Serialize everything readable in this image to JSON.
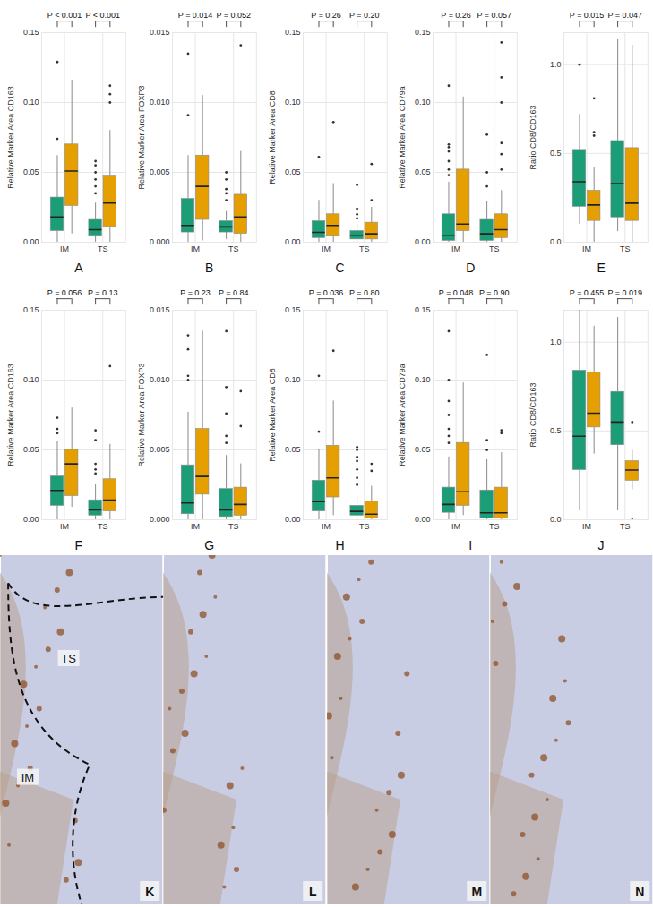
{
  "chart_data": [
    {
      "type": "box",
      "title": "A",
      "y_label": "Relative Marker Area CD163",
      "categories": [
        "IM",
        "TS"
      ],
      "grid": true,
      "ylim": [
        0,
        0.15
      ],
      "yticks": [
        {
          "value": 0,
          "label": "0.00"
        },
        {
          "value": 0.05,
          "label": "0.05"
        },
        {
          "value": 0.1,
          "label": "0.10"
        },
        {
          "value": 0.15,
          "label": "0.15"
        }
      ],
      "annotations": [
        "P < 0.001",
        "P < 0.001"
      ],
      "series": [
        {
          "color": "#1b9e77",
          "boxes": [
            {
              "q1": 0.008,
              "median": 0.018,
              "q3": 0.032,
              "whisker_low": 0,
              "whisker_high": 0.062,
              "outliers": [
                0.074,
                0.129
              ]
            },
            {
              "q1": 0.004,
              "median": 0.009,
              "q3": 0.016,
              "whisker_low": 0,
              "whisker_high": 0.028,
              "outliers": [
                0.035,
                0.04,
                0.045,
                0.05,
                0.055,
                0.058
              ]
            }
          ]
        },
        {
          "color": "#e69f00",
          "boxes": [
            {
              "q1": 0.026,
              "median": 0.051,
              "q3": 0.07,
              "whisker_low": 0.006,
              "whisker_high": 0.116,
              "outliers": []
            },
            {
              "q1": 0.011,
              "median": 0.028,
              "q3": 0.047,
              "whisker_low": 0,
              "whisker_high": 0.08,
              "outliers": [
                0.1,
                0.106,
                0.112
              ]
            }
          ]
        }
      ]
    },
    {
      "type": "box",
      "title": "B",
      "y_label": "Relative Marker Area FOXP3",
      "categories": [
        "IM",
        "TS"
      ],
      "grid": true,
      "ylim": [
        0,
        0.015
      ],
      "yticks": [
        {
          "value": 0,
          "label": "0.000"
        },
        {
          "value": 0.005,
          "label": "0.005"
        },
        {
          "value": 0.01,
          "label": "0.010"
        },
        {
          "value": 0.015,
          "label": "0.015"
        }
      ],
      "annotations": [
        "P = 0.014",
        "P = 0.052"
      ],
      "series": [
        {
          "color": "#1b9e77",
          "boxes": [
            {
              "q1": 0.0007,
              "median": 0.0012,
              "q3": 0.0031,
              "whisker_low": 0,
              "whisker_high": 0.0062,
              "outliers": [
                0.0091,
                0.0135
              ]
            },
            {
              "q1": 0.0007,
              "median": 0.0011,
              "q3": 0.0015,
              "whisker_low": 0.0002,
              "whisker_high": 0.0022,
              "outliers": [
                0.003,
                0.0035,
                0.0038,
                0.0045,
                0.005
              ]
            }
          ]
        },
        {
          "color": "#e69f00",
          "boxes": [
            {
              "q1": 0.0016,
              "median": 0.004,
              "q3": 0.0062,
              "whisker_low": 0.0001,
              "whisker_high": 0.0105,
              "outliers": []
            },
            {
              "q1": 0.0006,
              "median": 0.0018,
              "q3": 0.0034,
              "whisker_low": 0,
              "whisker_high": 0.0065,
              "outliers": [
                0.0141
              ]
            }
          ]
        }
      ]
    },
    {
      "type": "box",
      "title": "C",
      "y_label": "Relative Marker Area CD8",
      "categories": [
        "IM",
        "TS"
      ],
      "grid": true,
      "ylim": [
        0,
        0.15
      ],
      "yticks": [
        {
          "value": 0,
          "label": "0.00"
        },
        {
          "value": 0.05,
          "label": "0.05"
        },
        {
          "value": 0.1,
          "label": "0.10"
        },
        {
          "value": 0.15,
          "label": "0.15"
        }
      ],
      "annotations": [
        "P = 0.26",
        "P = 0.20"
      ],
      "series": [
        {
          "color": "#1b9e77",
          "boxes": [
            {
              "q1": 0.003,
              "median": 0.007,
              "q3": 0.015,
              "whisker_low": 0,
              "whisker_high": 0.03,
              "outliers": [
                0.061
              ]
            },
            {
              "q1": 0.002,
              "median": 0.005,
              "q3": 0.008,
              "whisker_low": 0,
              "whisker_high": 0.013,
              "outliers": [
                0.017,
                0.02,
                0.024,
                0.041
              ]
            }
          ]
        },
        {
          "color": "#e69f00",
          "boxes": [
            {
              "q1": 0.004,
              "median": 0.012,
              "q3": 0.02,
              "whisker_low": 0,
              "whisker_high": 0.042,
              "outliers": [
                0.086
              ]
            },
            {
              "q1": 0.002,
              "median": 0.006,
              "q3": 0.014,
              "whisker_low": 0,
              "whisker_high": 0.025,
              "outliers": [
                0.03,
                0.056
              ]
            }
          ]
        }
      ]
    },
    {
      "type": "box",
      "title": "D",
      "y_label": "Relative Marker Area CD79a",
      "categories": [
        "IM",
        "TS"
      ],
      "grid": true,
      "ylim": [
        0,
        0.15
      ],
      "yticks": [
        {
          "value": 0,
          "label": "0.00"
        },
        {
          "value": 0.05,
          "label": "0.05"
        },
        {
          "value": 0.1,
          "label": "0.10"
        },
        {
          "value": 0.15,
          "label": "0.15"
        }
      ],
      "annotations": [
        "P = 0.26",
        "P = 0.057"
      ],
      "series": [
        {
          "color": "#1b9e77",
          "boxes": [
            {
              "q1": 0.001,
              "median": 0.005,
              "q3": 0.02,
              "whisker_low": 0,
              "whisker_high": 0.043,
              "outliers": [
                0.048,
                0.052,
                0.058,
                0.065,
                0.068,
                0.07,
                0.112
              ]
            },
            {
              "q1": 0.001,
              "median": 0.006,
              "q3": 0.016,
              "whisker_low": 0,
              "whisker_high": 0.029,
              "outliers": [
                0.04,
                0.05,
                0.077
              ]
            }
          ]
        },
        {
          "color": "#e69f00",
          "boxes": [
            {
              "q1": 0.008,
              "median": 0.013,
              "q3": 0.052,
              "whisker_low": 0,
              "whisker_high": 0.104,
              "outliers": []
            },
            {
              "q1": 0.003,
              "median": 0.009,
              "q3": 0.02,
              "whisker_low": 0,
              "whisker_high": 0.037,
              "outliers": [
                0.052,
                0.063,
                0.071,
                0.1,
                0.118,
                0.143
              ]
            }
          ]
        }
      ]
    },
    {
      "type": "box",
      "title": "E",
      "y_label": "Ratio CD8/CD163",
      "categories": [
        "IM",
        "TS"
      ],
      "grid": true,
      "ylim": [
        0,
        1.18
      ],
      "yticks": [
        {
          "value": 0,
          "label": "0.0"
        },
        {
          "value": 0.5,
          "label": "0.5"
        },
        {
          "value": 1,
          "label": "1.0"
        }
      ],
      "annotations": [
        "P = 0.015",
        "P = 0.047"
      ],
      "series": [
        {
          "color": "#1b9e77",
          "boxes": [
            {
              "q1": 0.2,
              "median": 0.34,
              "q3": 0.52,
              "whisker_low": 0.1,
              "whisker_high": 0.72,
              "outliers": [
                1.0
              ]
            },
            {
              "q1": 0.14,
              "median": 0.33,
              "q3": 0.57,
              "whisker_low": 0.06,
              "whisker_high": 1.14,
              "outliers": []
            }
          ]
        },
        {
          "color": "#e69f00",
          "boxes": [
            {
              "q1": 0.12,
              "median": 0.21,
              "q3": 0.29,
              "whisker_low": 0,
              "whisker_high": 0.42,
              "outliers": [
                0.6,
                0.62,
                0.81
              ]
            },
            {
              "q1": 0.12,
              "median": 0.22,
              "q3": 0.53,
              "whisker_low": 0,
              "whisker_high": 1.11,
              "outliers": []
            }
          ]
        }
      ]
    },
    {
      "type": "box",
      "title": "F",
      "y_label": "Relative Marker Area CD163",
      "categories": [
        "IM",
        "TS"
      ],
      "grid": true,
      "ylim": [
        0,
        0.15
      ],
      "yticks": [
        {
          "value": 0,
          "label": "0.00"
        },
        {
          "value": 0.05,
          "label": "0.05"
        },
        {
          "value": 0.1,
          "label": "0.10"
        },
        {
          "value": 0.15,
          "label": "0.15"
        }
      ],
      "annotations": [
        "P = 0.056",
        "P = 0.13"
      ],
      "series": [
        {
          "color": "#1b9e77",
          "boxes": [
            {
              "q1": 0.01,
              "median": 0.021,
              "q3": 0.031,
              "whisker_low": 0,
              "whisker_high": 0.056,
              "outliers": [
                0.062,
                0.065,
                0.073
              ]
            },
            {
              "q1": 0.003,
              "median": 0.007,
              "q3": 0.014,
              "whisker_low": 0,
              "whisker_high": 0.025,
              "outliers": [
                0.033,
                0.036,
                0.04,
                0.057,
                0.064
              ]
            }
          ]
        },
        {
          "color": "#e69f00",
          "boxes": [
            {
              "q1": 0.017,
              "median": 0.04,
              "q3": 0.05,
              "whisker_low": 0.009,
              "whisker_high": 0.08,
              "outliers": []
            },
            {
              "q1": 0.006,
              "median": 0.014,
              "q3": 0.029,
              "whisker_low": 0,
              "whisker_high": 0.054,
              "outliers": [
                0.11
              ]
            }
          ]
        }
      ]
    },
    {
      "type": "box",
      "title": "G",
      "y_label": "Relative Marker Area FOXP3",
      "categories": [
        "IM",
        "TS"
      ],
      "grid": true,
      "ylim": [
        0,
        0.015
      ],
      "yticks": [
        {
          "value": 0,
          "label": "0.000"
        },
        {
          "value": 0.005,
          "label": "0.005"
        },
        {
          "value": 0.01,
          "label": "0.010"
        },
        {
          "value": 0.015,
          "label": "0.015"
        }
      ],
      "annotations": [
        "P = 0.23",
        "P = 0.84"
      ],
      "series": [
        {
          "color": "#1b9e77",
          "boxes": [
            {
              "q1": 0.0004,
              "median": 0.0012,
              "q3": 0.0039,
              "whisker_low": 0,
              "whisker_high": 0.0077,
              "outliers": [
                0.01,
                0.0103,
                0.0122,
                0.0132
              ]
            },
            {
              "q1": 0.0002,
              "median": 0.0007,
              "q3": 0.0022,
              "whisker_low": 0,
              "whisker_high": 0.0046,
              "outliers": [
                0.0055,
                0.006,
                0.0076,
                0.0095,
                0.0135
              ]
            }
          ]
        },
        {
          "color": "#e69f00",
          "boxes": [
            {
              "q1": 0.0018,
              "median": 0.0031,
              "q3": 0.0065,
              "whisker_low": 0,
              "whisker_high": 0.0135,
              "outliers": []
            },
            {
              "q1": 0.0003,
              "median": 0.0011,
              "q3": 0.0023,
              "whisker_low": 0,
              "whisker_high": 0.004,
              "outliers": [
                0.0067,
                0.0092
              ]
            }
          ]
        }
      ]
    },
    {
      "type": "box",
      "title": "H",
      "y_label": "Relative Marker Area CD8",
      "categories": [
        "IM",
        "TS"
      ],
      "grid": true,
      "ylim": [
        0,
        0.15
      ],
      "yticks": [
        {
          "value": 0,
          "label": "0.00"
        },
        {
          "value": 0.05,
          "label": "0.05"
        },
        {
          "value": 0.1,
          "label": "0.10"
        },
        {
          "value": 0.15,
          "label": "0.15"
        }
      ],
      "annotations": [
        "P = 0.036",
        "P = 0.80"
      ],
      "series": [
        {
          "color": "#1b9e77",
          "boxes": [
            {
              "q1": 0.006,
              "median": 0.013,
              "q3": 0.028,
              "whisker_low": 0,
              "whisker_high": 0.05,
              "outliers": [
                0.063,
                0.103
              ]
            },
            {
              "q1": 0.003,
              "median": 0.006,
              "q3": 0.01,
              "whisker_low": 0,
              "whisker_high": 0.016,
              "outliers": [
                0.025,
                0.03,
                0.036,
                0.042,
                0.045,
                0.05,
                0.052
              ]
            }
          ]
        },
        {
          "color": "#e69f00",
          "boxes": [
            {
              "q1": 0.016,
              "median": 0.03,
              "q3": 0.053,
              "whisker_low": 0.003,
              "whisker_high": 0.085,
              "outliers": [
                0.121
              ]
            },
            {
              "q1": 0.001,
              "median": 0.004,
              "q3": 0.013,
              "whisker_low": 0,
              "whisker_high": 0.024,
              "outliers": [
                0.035,
                0.04
              ]
            }
          ]
        }
      ]
    },
    {
      "type": "box",
      "title": "I",
      "y_label": "Relative Marker Area CD79a",
      "categories": [
        "IM",
        "TS"
      ],
      "grid": true,
      "ylim": [
        0,
        0.15
      ],
      "yticks": [
        {
          "value": 0,
          "label": "0.00"
        },
        {
          "value": 0.05,
          "label": "0.05"
        },
        {
          "value": 0.1,
          "label": "0.10"
        },
        {
          "value": 0.15,
          "label": "0.15"
        }
      ],
      "annotations": [
        "P = 0.048",
        "P = 0.90"
      ],
      "series": [
        {
          "color": "#1b9e77",
          "boxes": [
            {
              "q1": 0.005,
              "median": 0.011,
              "q3": 0.023,
              "whisker_low": 0,
              "whisker_high": 0.045,
              "outliers": [
                0.055,
                0.06,
                0.065,
                0.075,
                0.085,
                0.1,
                0.135
              ]
            },
            {
              "q1": 0.001,
              "median": 0.005,
              "q3": 0.021,
              "whisker_low": 0,
              "whisker_high": 0.043,
              "outliers": [
                0.05,
                0.057,
                0.118
              ]
            }
          ]
        },
        {
          "color": "#e69f00",
          "boxes": [
            {
              "q1": 0.01,
              "median": 0.02,
              "q3": 0.055,
              "whisker_low": 0.003,
              "whisker_high": 0.098,
              "outliers": []
            },
            {
              "q1": 0.001,
              "median": 0.005,
              "q3": 0.023,
              "whisker_low": 0,
              "whisker_high": 0.048,
              "outliers": [
                0.062,
                0.064
              ]
            }
          ]
        }
      ]
    },
    {
      "type": "box",
      "title": "J",
      "y_label": "Ratio CD8/CD163",
      "categories": [
        "IM",
        "TS"
      ],
      "grid": true,
      "ylim": [
        0,
        1.18
      ],
      "yticks": [
        {
          "value": 0,
          "label": "0.0"
        },
        {
          "value": 0.5,
          "label": "0.5"
        },
        {
          "value": 1,
          "label": "1.0"
        }
      ],
      "annotations": [
        "P = 0.455",
        "P = 0.019"
      ],
      "series": [
        {
          "color": "#1b9e77",
          "boxes": [
            {
              "q1": 0.28,
              "median": 0.47,
              "q3": 0.84,
              "whisker_low": 0.05,
              "whisker_high": 1.2,
              "outliers": []
            },
            {
              "q1": 0.42,
              "median": 0.55,
              "q3": 0.72,
              "whisker_low": 0.05,
              "whisker_high": 1.14,
              "outliers": []
            }
          ]
        },
        {
          "color": "#e69f00",
          "boxes": [
            {
              "q1": 0.52,
              "median": 0.6,
              "q3": 0.83,
              "whisker_low": 0.37,
              "whisker_high": 1.09,
              "outliers": []
            },
            {
              "q1": 0.22,
              "median": 0.28,
              "q3": 0.33,
              "whisker_low": 0.17,
              "whisker_high": 0.39,
              "outliers": [
                0,
                0.55
              ]
            }
          ]
        }
      ]
    }
  ],
  "images": [
    {
      "label": "K",
      "annotations": [
        "TS",
        "IM"
      ]
    },
    {
      "label": "L",
      "annotations": []
    },
    {
      "label": "M",
      "annotations": []
    },
    {
      "label": "N",
      "annotations": []
    }
  ]
}
